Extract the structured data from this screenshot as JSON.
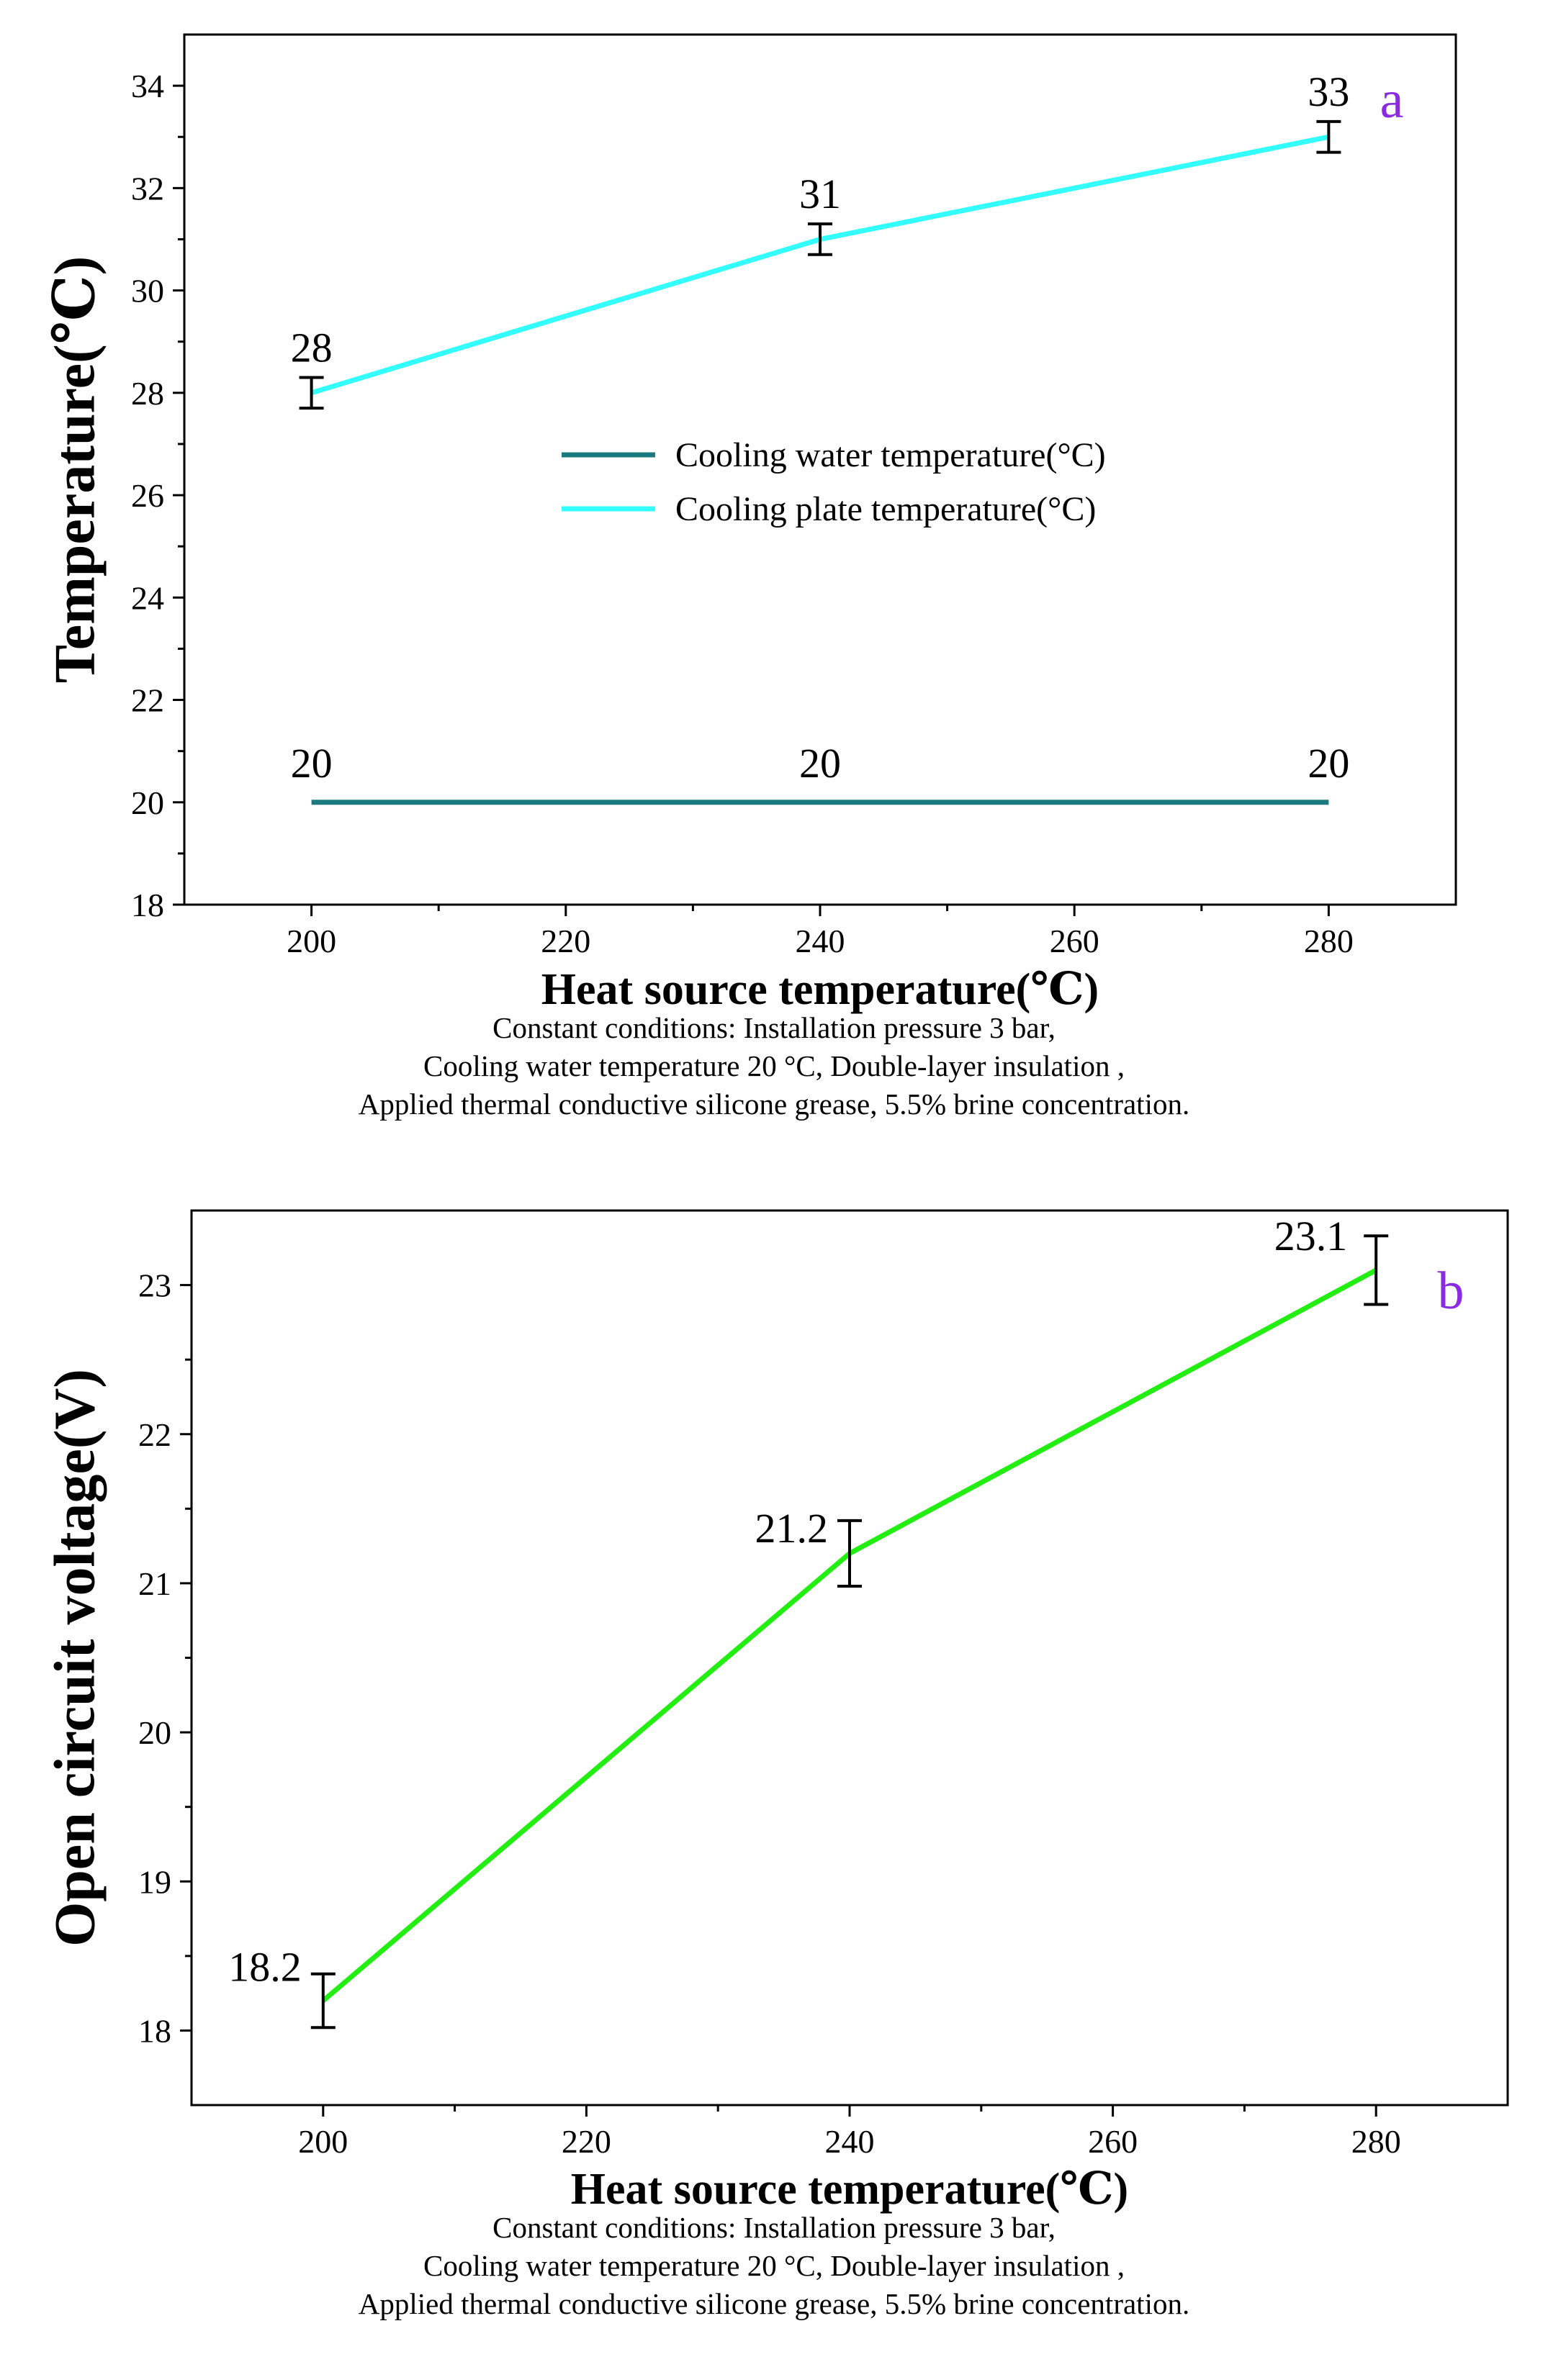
{
  "colors": {
    "water": "#1a7a80",
    "plate": "#33ffff",
    "voltage": "#22ee11",
    "panel_label": "#8a2be2",
    "axis": "#000000"
  },
  "chart_data": [
    {
      "type": "line",
      "panel_label": "a",
      "x": [
        200,
        240,
        280
      ],
      "xlim": [
        190,
        290
      ],
      "xticks": [
        200,
        220,
        240,
        260,
        280
      ],
      "ylim": [
        18,
        35
      ],
      "yticks": [
        18,
        20,
        22,
        24,
        26,
        28,
        30,
        32,
        34
      ],
      "xlabel": "Heat source temperature(℃)",
      "ylabel": "Temperature(℃)",
      "legend_position": "center-right",
      "series": [
        {
          "name": "Cooling water temperature(°C)",
          "color_key": "water",
          "values": [
            20,
            20,
            20
          ],
          "error": [
            0,
            0,
            0
          ],
          "labels": [
            "20",
            "20",
            "20"
          ]
        },
        {
          "name": "Cooling plate temperature(°C)",
          "color_key": "plate",
          "values": [
            28,
            31,
            33
          ],
          "error": [
            0.3,
            0.3,
            0.3
          ],
          "labels": [
            "28",
            "31",
            "33"
          ]
        }
      ],
      "caption": [
        "Constant conditions: Installation pressure 3 bar,",
        "Cooling water temperature 20 °C, Double-layer insulation ,",
        "Applied thermal conductive silicone grease, 5.5% brine concentration."
      ]
    },
    {
      "type": "line",
      "panel_label": "b",
      "x": [
        200,
        240,
        280
      ],
      "xlim": [
        190,
        290
      ],
      "xticks": [
        200,
        220,
        240,
        260,
        280
      ],
      "ylim": [
        17.5,
        23.5
      ],
      "yticks": [
        18,
        19,
        20,
        21,
        22,
        23
      ],
      "xlabel": "Heat source temperature(℃)",
      "ylabel": "Open circuit voltage(V)",
      "series": [
        {
          "name": "Open circuit voltage",
          "color_key": "voltage",
          "values": [
            18.2,
            21.2,
            23.1
          ],
          "error": [
            0.18,
            0.22,
            0.23
          ],
          "labels": [
            "18.2",
            "21.2",
            "23.1"
          ]
        }
      ],
      "caption": [
        "Constant conditions: Installation pressure 3 bar,",
        "Cooling water temperature 20 °C, Double-layer insulation ,",
        "Applied thermal conductive silicone grease, 5.5% brine concentration."
      ]
    }
  ]
}
